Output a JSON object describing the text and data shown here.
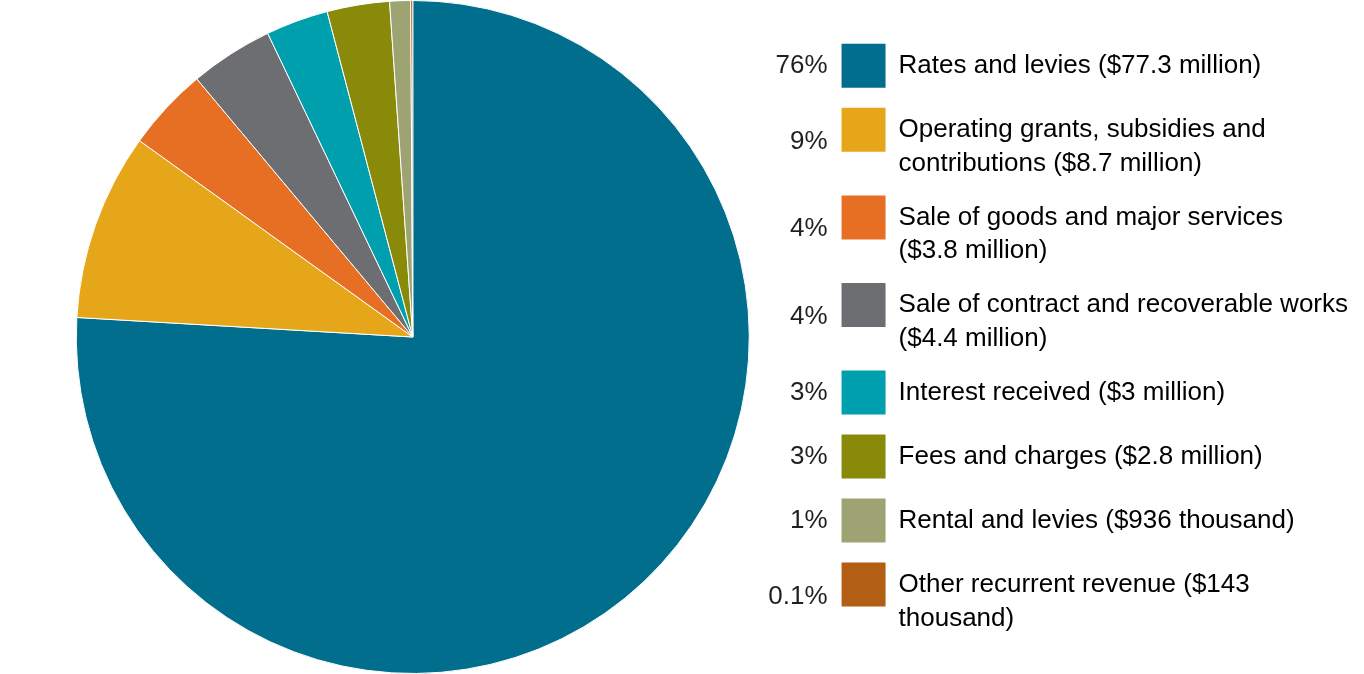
{
  "chart_data": {
    "type": "pie",
    "categories": [
      "Rates and levies ($77.3 million)",
      "Operating grants, subsidies and contributions ($8.7 million)",
      "Sale of goods and major services ($3.8 million)",
      "Sale of contract and recoverable works ($4.4 million)",
      "Interest received ($3 million)",
      "Fees and charges ($2.8 million)",
      "Rental and levies ($936 thousand)",
      "Other recurrent revenue ($143 thousand)"
    ],
    "values": [
      76,
      9,
      4,
      4,
      3,
      3,
      1,
      0.1
    ],
    "value_labels": [
      "76%",
      "9%",
      "4%",
      "4%",
      "3%",
      "3%",
      "1%",
      "0.1%"
    ],
    "colors": [
      "#006e8c",
      "#e6a619",
      "#e76f24",
      "#6d6e71",
      "#009fae",
      "#8a8a0a",
      "#9ea374",
      "#b25e14"
    ],
    "legend": "right"
  }
}
